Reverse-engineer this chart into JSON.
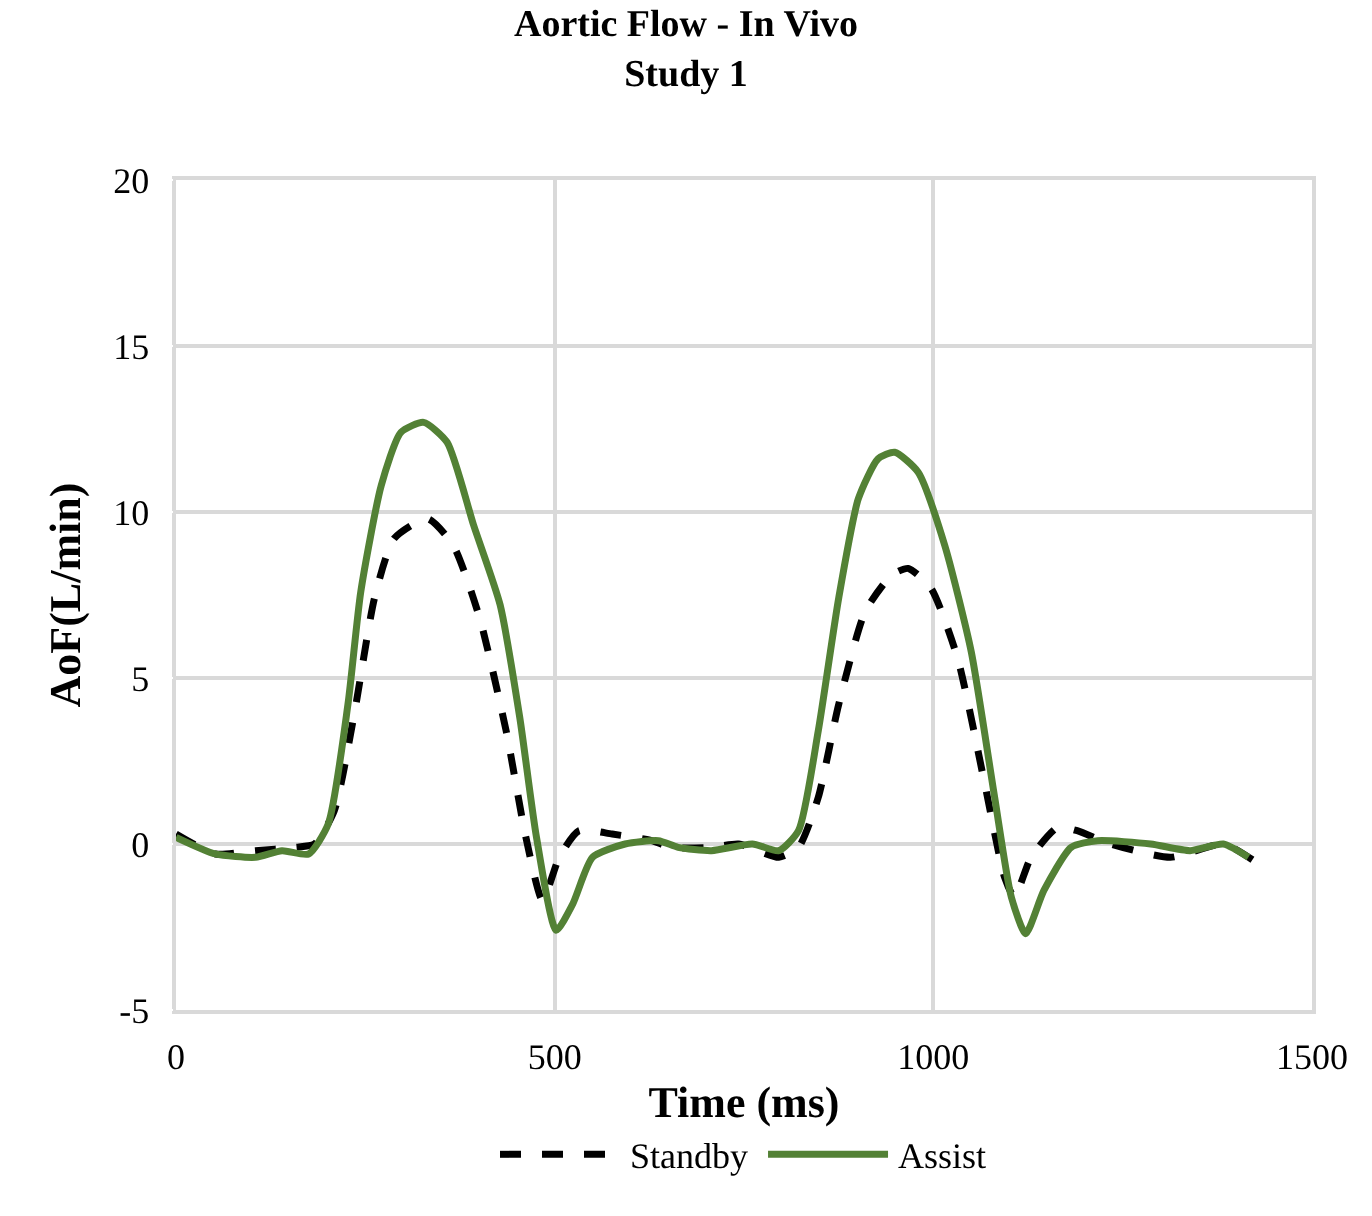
{
  "chart_data": {
    "type": "line",
    "title": "Aortic Flow - In Vivo",
    "subtitle": "Study 1",
    "xlabel": "Time (ms)",
    "ylabel": "AoF(L/min)",
    "xlim": [
      0,
      1500
    ],
    "xticks": [
      0,
      500,
      1000,
      1500
    ],
    "ylim": [
      -5,
      20
    ],
    "yticks": [
      -5,
      0,
      5,
      10,
      15,
      20
    ],
    "grid": true,
    "legend": "bottom",
    "marker": "none",
    "series": [
      {
        "name": "Standby",
        "color": "#000000",
        "line_style": "dashed",
        "x": [
          0,
          52,
          105,
          157,
          183,
          209,
          236,
          262,
          288,
          332,
          366,
          401,
          436,
          462,
          484,
          506,
          532,
          576,
          628,
          654,
          707,
          743,
          796,
          822,
          848,
          875,
          910,
          945,
          967,
          997,
          1032,
          1068,
          1094,
          1107,
          1129,
          1164,
          1190,
          1234,
          1313,
          1383,
          1423
        ],
        "values": [
          0.3,
          -0.3,
          -0.2,
          -0.1,
          0,
          1.0,
          4.0,
          7.4,
          9.2,
          9.8,
          9.0,
          6.8,
          3.4,
          0.2,
          -1.7,
          -0.4,
          0.4,
          0.3,
          0.1,
          -0.1,
          -0.1,
          0,
          -0.4,
          -0.1,
          1.4,
          4.2,
          7.0,
          8.1,
          8.3,
          7.7,
          5.6,
          1.8,
          -1.0,
          -1.6,
          -0.4,
          0.5,
          0.4,
          0,
          -0.4,
          0,
          -0.5
        ]
      },
      {
        "name": "Assist",
        "color": "#538135",
        "line_style": "solid",
        "x": [
          0,
          52,
          105,
          140,
          175,
          201,
          227,
          244,
          271,
          297,
          327,
          358,
          393,
          428,
          454,
          476,
          502,
          524,
          550,
          593,
          637,
          663,
          707,
          761,
          796,
          822,
          848,
          875,
          901,
          927,
          949,
          980,
          1015,
          1050,
          1081,
          1103,
          1122,
          1146,
          1182,
          1217,
          1287,
          1339,
          1383,
          1416
        ],
        "values": [
          0.2,
          -0.3,
          -0.4,
          -0.2,
          -0.3,
          0.6,
          4.2,
          7.6,
          10.8,
          12.4,
          12.7,
          12.1,
          9.6,
          7.2,
          3.8,
          0.2,
          -2.6,
          -1.8,
          -0.4,
          0,
          0.1,
          -0.1,
          -0.2,
          0,
          -0.2,
          0.4,
          3.4,
          7.4,
          10.4,
          11.6,
          11.8,
          11.2,
          9.0,
          5.8,
          1.4,
          -1.6,
          -2.7,
          -1.4,
          -0.1,
          0.1,
          0,
          -0.2,
          0,
          -0.4
        ]
      }
    ]
  }
}
